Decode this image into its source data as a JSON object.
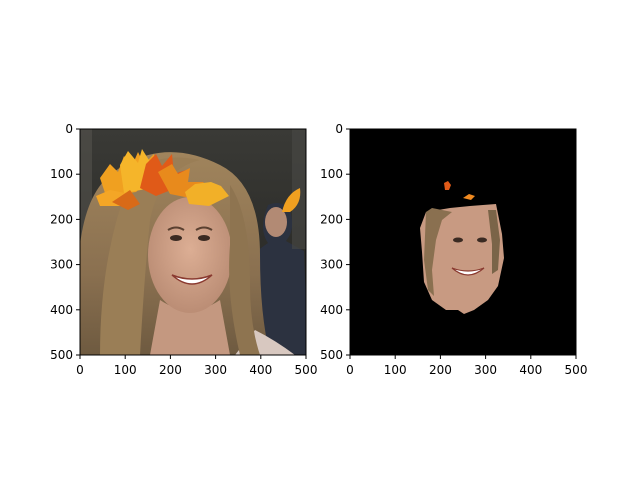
{
  "figure": {
    "panels": [
      {
        "id": "left",
        "content": "face photo with autumn leaf crown overlay",
        "x_ticks": [
          "0",
          "100",
          "200",
          "300",
          "400",
          "500"
        ],
        "y_ticks": [
          "0",
          "100",
          "200",
          "300",
          "400",
          "500"
        ],
        "x_range": [
          0,
          500
        ],
        "y_range": [
          0,
          500
        ]
      },
      {
        "id": "right",
        "content": "segmented face mask on black background",
        "x_ticks": [
          "0",
          "100",
          "200",
          "300",
          "400",
          "500"
        ],
        "y_ticks": [
          "0",
          "100",
          "200",
          "300",
          "400",
          "500"
        ],
        "x_range": [
          0,
          500
        ],
        "y_range": [
          0,
          500
        ]
      }
    ],
    "colors": {
      "mask_background": "#000000",
      "leaf_orange": "#f0a020",
      "leaf_red": "#e05a18",
      "skin": "#c89a82",
      "hair": "#8a7050"
    }
  }
}
